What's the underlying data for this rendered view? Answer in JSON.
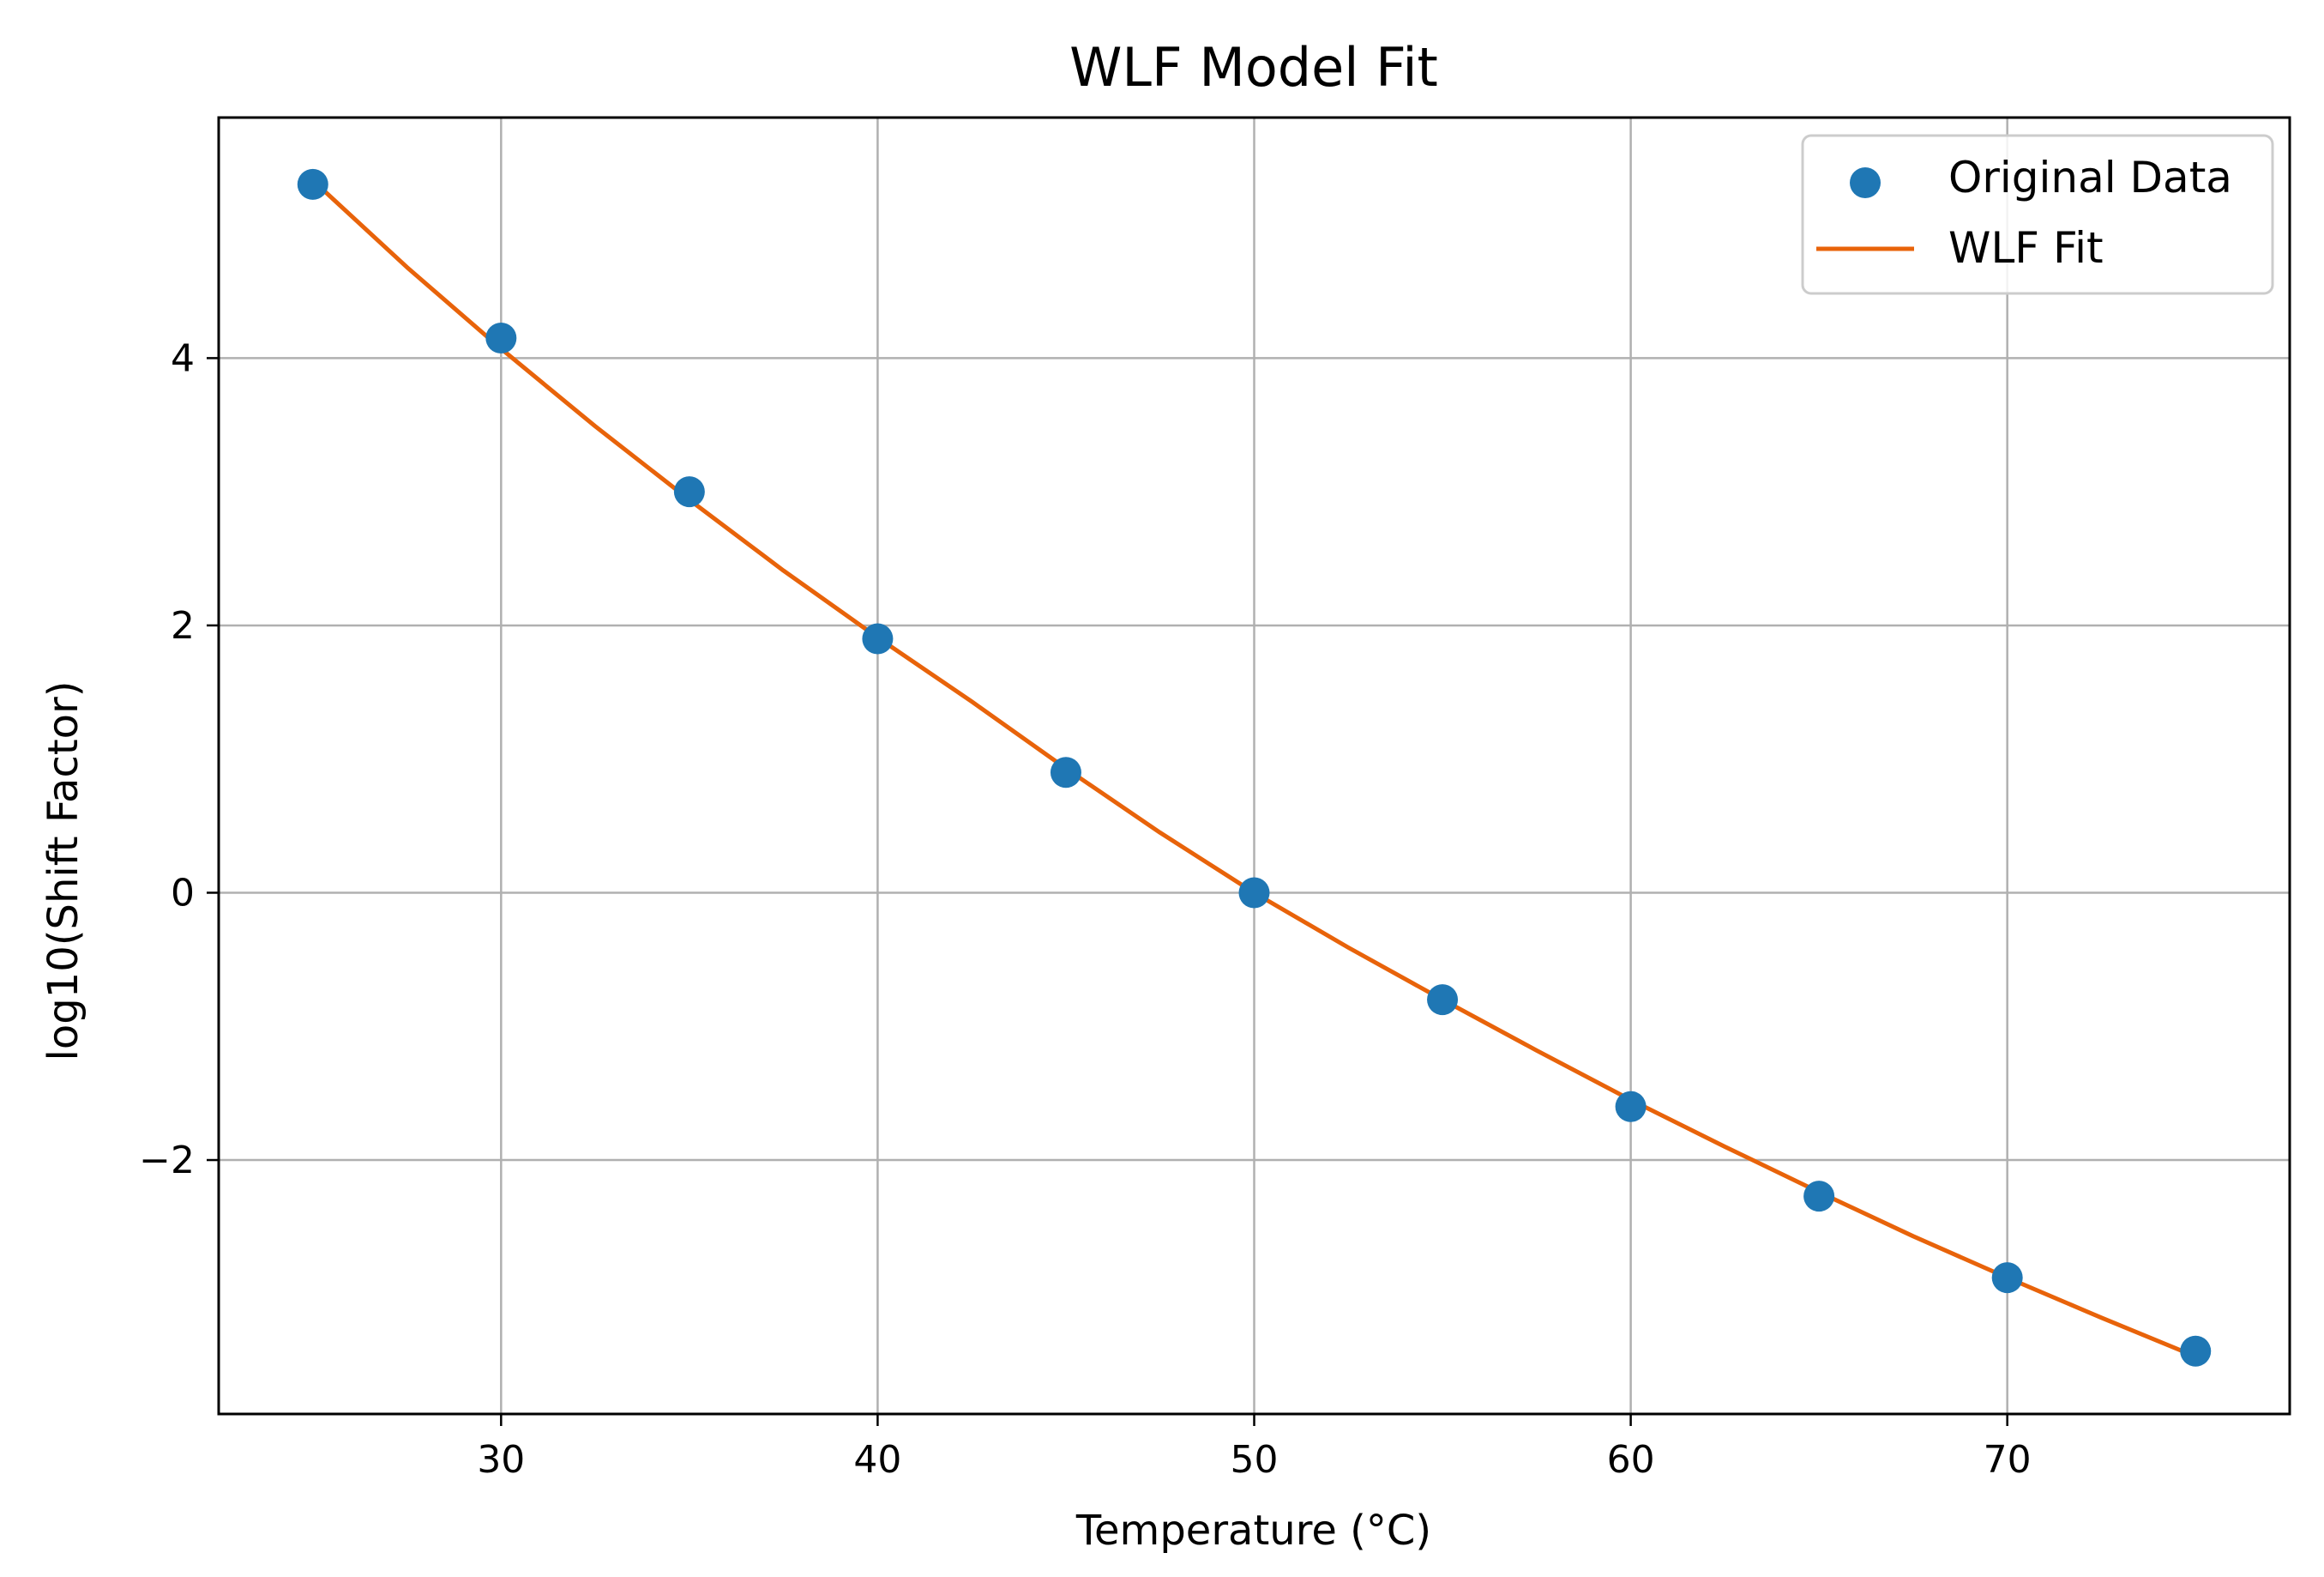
{
  "chart_data": {
    "type": "scatter",
    "title": "WLF Model Fit",
    "xlabel": "Temperature (°C)",
    "ylabel": "log10(Shift Factor)",
    "xlim": [
      22.5,
      77.5
    ],
    "ylim": [
      -3.9,
      5.8
    ],
    "grid": true,
    "legend_position": "top-right",
    "x_ticks": [
      30,
      40,
      50,
      60,
      70
    ],
    "x_tick_labels": [
      "30",
      "40",
      "50",
      "60",
      "70"
    ],
    "y_ticks": [
      -2,
      0,
      2,
      4
    ],
    "y_tick_labels": [
      "−2",
      "0",
      "2",
      "4"
    ],
    "series": [
      {
        "name": "Original Data",
        "kind": "scatter",
        "color": "#1f77b4",
        "x": [
          25,
          30,
          35,
          40,
          45,
          50,
          55,
          60,
          65,
          70,
          75
        ],
        "y": [
          5.3,
          4.15,
          3.0,
          1.9,
          0.9,
          0.0,
          -0.8,
          -1.6,
          -2.27,
          -2.88,
          -3.43
        ]
      },
      {
        "name": "WLF Fit",
        "kind": "line",
        "color": "#e8630a",
        "x": [
          25,
          27.5,
          30,
          32.5,
          35,
          37.5,
          40,
          42.5,
          45,
          47.5,
          50,
          52.5,
          55,
          57.5,
          60,
          62.5,
          65,
          67.5,
          70,
          72.5,
          75
        ],
        "y": [
          5.33,
          4.68,
          4.07,
          3.49,
          2.94,
          2.41,
          1.91,
          1.43,
          0.93,
          0.45,
          0.0,
          -0.41,
          -0.8,
          -1.18,
          -1.55,
          -1.9,
          -2.24,
          -2.57,
          -2.88,
          -3.18,
          -3.47
        ]
      }
    ]
  }
}
